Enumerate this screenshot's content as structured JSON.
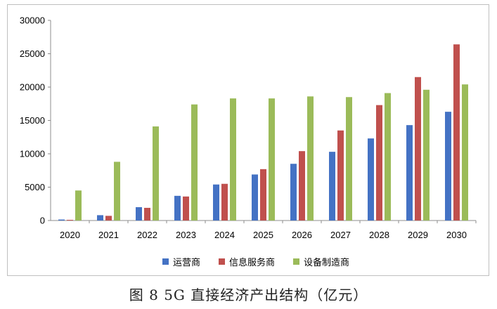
{
  "chart_data": {
    "type": "bar",
    "categories": [
      "2020",
      "2021",
      "2022",
      "2023",
      "2024",
      "2025",
      "2026",
      "2027",
      "2028",
      "2029",
      "2030"
    ],
    "series": [
      {
        "name": "运营商",
        "color": "#4472C4",
        "values": [
          150,
          800,
          2000,
          3700,
          5400,
          6900,
          8500,
          10300,
          12300,
          14300,
          16300
        ]
      },
      {
        "name": "信息服务商",
        "color": "#C0504D",
        "values": [
          100,
          700,
          1900,
          3600,
          5500,
          7700,
          10400,
          13500,
          17300,
          21500,
          26400
        ]
      },
      {
        "name": "设备制造商",
        "color": "#9BBB59",
        "values": [
          4500,
          8800,
          14100,
          17400,
          18300,
          18300,
          18600,
          18500,
          19100,
          19600,
          20400
        ]
      }
    ],
    "ylim": [
      0,
      30000
    ],
    "yticks": [
      "0",
      "5000",
      "10000",
      "15000",
      "20000",
      "25000",
      "30000"
    ],
    "grid": false,
    "legend_position": "bottom"
  },
  "caption": "图 8 5G 直接经济产出结构（亿元）"
}
